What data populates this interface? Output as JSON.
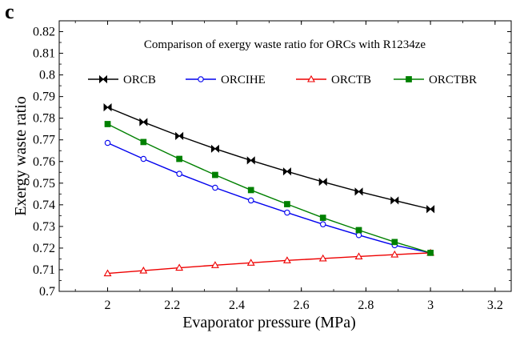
{
  "panel_label": "c",
  "chart_data": {
    "type": "line",
    "title": "Comparison of exergy waste ratio for ORCs with R1234ze",
    "xlabel": "Evaporator pressure (MPa)",
    "ylabel": "Exergy waste ratio",
    "xlim": [
      1.85,
      3.25
    ],
    "ylim": [
      0.7,
      0.825
    ],
    "x_ticks": [
      "2",
      "2.2",
      "2.4",
      "2.6",
      "2.8",
      "3",
      "3.2"
    ],
    "y_ticks": [
      "0.7",
      "0.71",
      "0.72",
      "0.73",
      "0.74",
      "0.75",
      "0.76",
      "0.77",
      "0.78",
      "0.79",
      "0.8",
      "0.81",
      "0.82"
    ],
    "x": [
      2.0,
      2.111,
      2.222,
      2.333,
      2.444,
      2.556,
      2.667,
      2.778,
      2.889,
      3.0
    ],
    "grid": false,
    "legend_position": "top, inside plot, single row",
    "series": [
      {
        "name": "ORCB",
        "color": "#000000",
        "marker": "bowtie",
        "values": [
          0.785,
          0.7782,
          0.7718,
          0.7659,
          0.7605,
          0.7554,
          0.7506,
          0.7461,
          0.742,
          0.738
        ]
      },
      {
        "name": "ORCIHE",
        "color": "#0000ee",
        "marker": "open-circle",
        "values": [
          0.7686,
          0.7612,
          0.7543,
          0.7479,
          0.742,
          0.7364,
          0.731,
          0.726,
          0.7213,
          0.7178
        ]
      },
      {
        "name": "ORCTB",
        "color": "#ee0000",
        "marker": "open-triangle",
        "values": [
          0.7083,
          0.7096,
          0.7109,
          0.7121,
          0.7132,
          0.7143,
          0.7152,
          0.7161,
          0.717,
          0.7178
        ]
      },
      {
        "name": "ORCTBR",
        "color": "#008000",
        "marker": "filled-square",
        "values": [
          0.7773,
          0.769,
          0.7612,
          0.7538,
          0.7468,
          0.7403,
          0.734,
          0.7283,
          0.7228,
          0.7178
        ]
      }
    ]
  }
}
